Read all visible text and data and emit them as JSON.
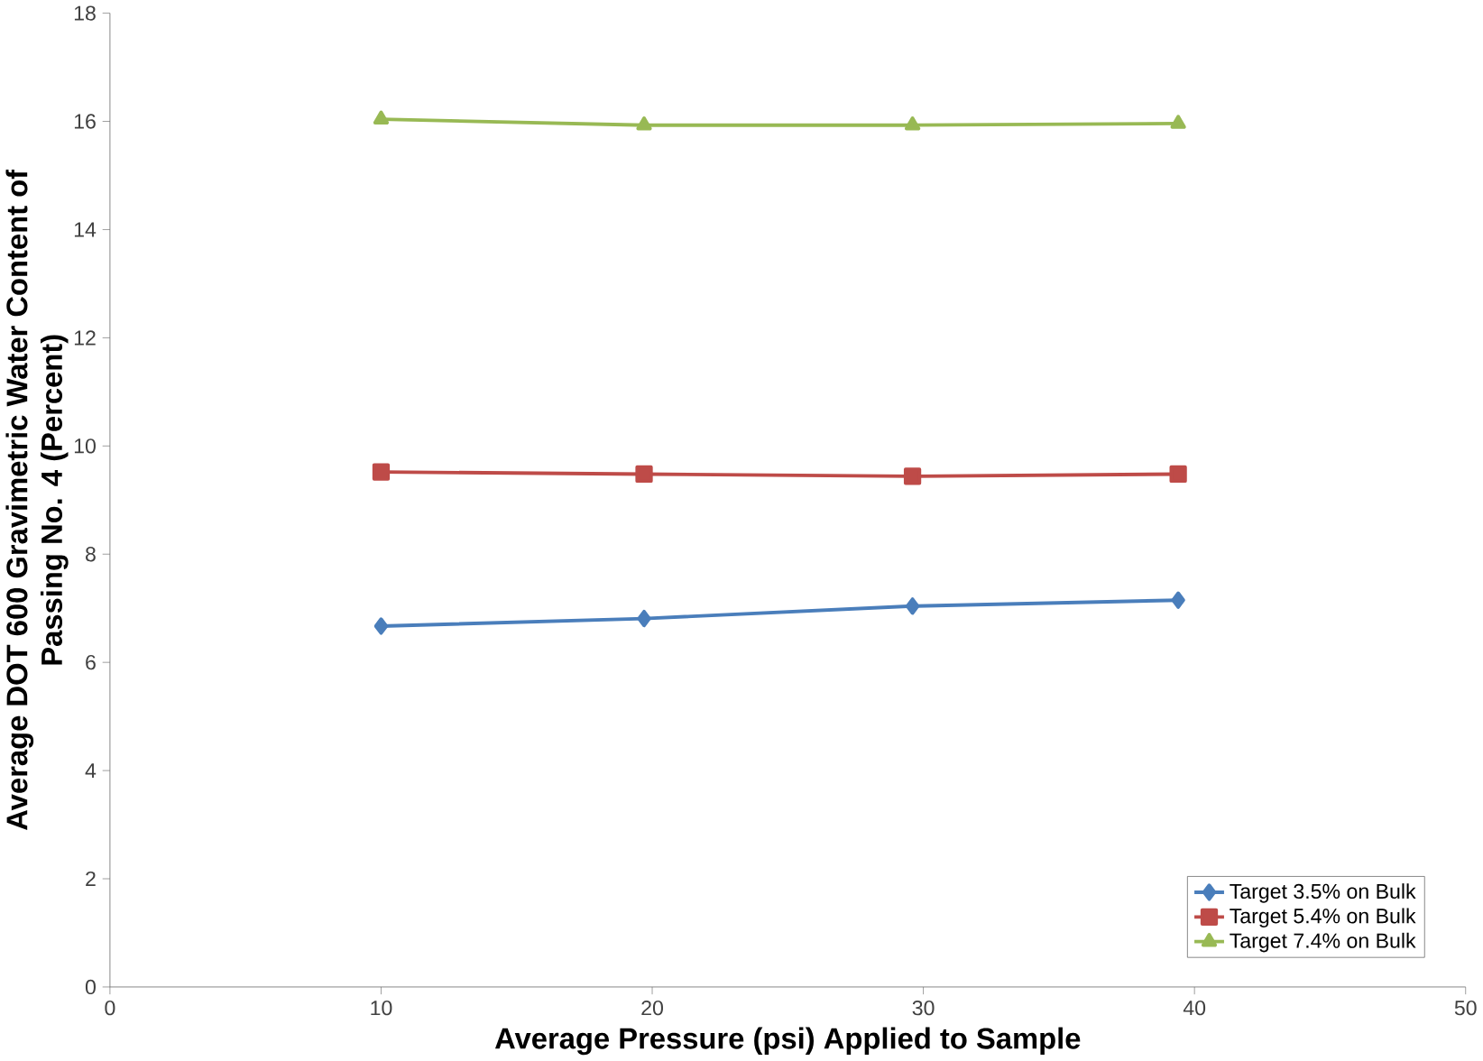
{
  "chart_data": {
    "type": "line",
    "xlabel": "Average Pressure (psi) Applied to Sample",
    "ylabel": "Average DOT 600 Gravimetric Water Content of Passing No. 4 (Percent)",
    "xlim": [
      0,
      50
    ],
    "xticks": [
      0,
      10,
      20,
      30,
      40,
      50
    ],
    "ylim": [
      0,
      18
    ],
    "yticks": [
      0,
      2,
      4,
      6,
      8,
      10,
      12,
      14,
      16,
      18
    ],
    "legend": "bottom right",
    "grid": false,
    "x": [
      10.0,
      19.7,
      29.6,
      39.4
    ],
    "series": [
      {
        "name": "Target 3.5% on Bulk",
        "color": "#4a7ebb",
        "marker": "diamond",
        "values": [
          6.67,
          6.81,
          7.04,
          7.15
        ]
      },
      {
        "name": "Target 5.4% on Bulk",
        "color": "#be4b48",
        "marker": "square",
        "values": [
          9.52,
          9.48,
          9.44,
          9.48
        ]
      },
      {
        "name": "Target 7.4% on Bulk",
        "color": "#98b954",
        "marker": "triangle",
        "values": [
          16.04,
          15.93,
          15.93,
          15.96
        ]
      }
    ]
  }
}
